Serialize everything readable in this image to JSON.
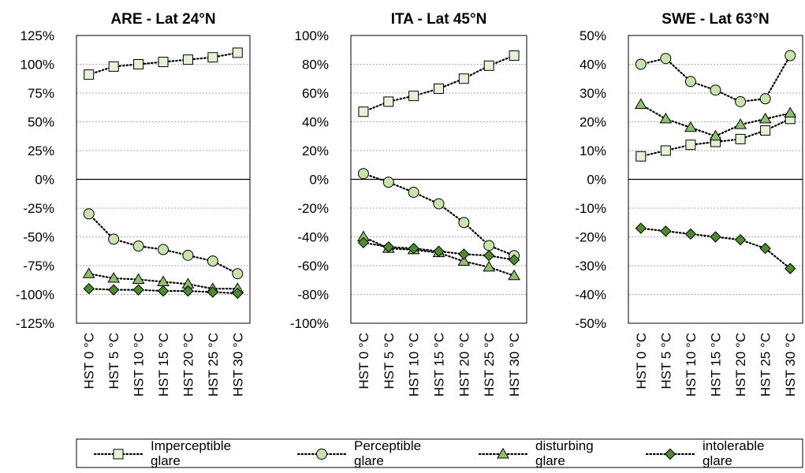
{
  "chart_data": [
    {
      "type": "line",
      "title": "ARE - Lat 24°N",
      "categories": [
        "HST 0 °C",
        "HST 5 °C",
        "HST 10 °C",
        "HST 15 °C",
        "HST 20 °C",
        "HST 25 °C",
        "HST 30 °C"
      ],
      "ylim": [
        -125,
        125
      ],
      "yticks": [
        "125%",
        "100%",
        "75%",
        "50%",
        "25%",
        "0%",
        "-25%",
        "-50%",
        "-75%",
        "-100%",
        "-125%"
      ],
      "grid": true,
      "series": [
        {
          "name": "Imperceptible glare",
          "values": [
            91,
            98,
            100,
            102,
            104,
            106,
            110
          ]
        },
        {
          "name": "Perceptible glare",
          "values": [
            -30,
            -52,
            -58,
            -61,
            -66,
            -71,
            -82
          ]
        },
        {
          "name": "disturbing glare",
          "values": [
            -82,
            -86,
            -87,
            -89,
            -91,
            -95,
            -95
          ]
        },
        {
          "name": "intolerable glare",
          "values": [
            -95,
            -96,
            -96,
            -97,
            -97,
            -98,
            -99
          ]
        }
      ]
    },
    {
      "type": "line",
      "title": "ITA - Lat 45°N",
      "categories": [
        "HST 0 °C",
        "HST 5 °C",
        "HST 10 °C",
        "HST 15 °C",
        "HST 20 °C",
        "HST 25 °C",
        "HST 30 °C"
      ],
      "ylim": [
        -100,
        100
      ],
      "yticks": [
        "100%",
        "80%",
        "60%",
        "40%",
        "20%",
        "0%",
        "-20%",
        "-40%",
        "-60%",
        "-80%",
        "-100%"
      ],
      "grid": true,
      "series": [
        {
          "name": "Imperceptible glare",
          "values": [
            47,
            54,
            58,
            63,
            70,
            79,
            86
          ]
        },
        {
          "name": "Perceptible glare",
          "values": [
            4,
            -2,
            -9,
            -17,
            -30,
            -46,
            -53
          ]
        },
        {
          "name": "disturbing glare",
          "values": [
            -40,
            -48,
            -49,
            -51,
            -57,
            -61,
            -67
          ]
        },
        {
          "name": "intolerable glare",
          "values": [
            -44,
            -47,
            -48,
            -50,
            -52,
            -53,
            -56
          ]
        }
      ]
    },
    {
      "type": "line",
      "title": "SWE - Lat 63°N",
      "categories": [
        "HST 0 °C",
        "HST 5 °C",
        "HST 10 °C",
        "HST 15 °C",
        "HST 20 °C",
        "HST 25 °C",
        "HST 30 °C"
      ],
      "ylim": [
        -50,
        50
      ],
      "yticks": [
        "50%",
        "40%",
        "30%",
        "20%",
        "10%",
        "0%",
        "-10%",
        "-20%",
        "-30%",
        "-40%",
        "-50%"
      ],
      "grid": true,
      "series": [
        {
          "name": "Imperceptible glare",
          "values": [
            8,
            10,
            12,
            13,
            14,
            17,
            21
          ]
        },
        {
          "name": "Perceptible glare",
          "values": [
            40,
            42,
            34,
            31,
            27,
            28,
            43
          ]
        },
        {
          "name": "disturbing glare",
          "values": [
            26,
            21,
            18,
            15,
            19,
            21,
            23
          ]
        },
        {
          "name": "intolerable glare",
          "values": [
            -17,
            -18,
            -19,
            -20,
            -21,
            -24,
            -31
          ]
        }
      ]
    }
  ],
  "legend": {
    "position": "bottom",
    "items": [
      {
        "marker": "square",
        "line1": "Imperceptible",
        "line2": "glare",
        "fill": "#e6f2d8"
      },
      {
        "marker": "circle",
        "line1": "Perceptible",
        "line2": "glare",
        "fill": "#c9e3ad"
      },
      {
        "marker": "triangle",
        "line1": "disturbing",
        "line2": "glare",
        "fill": "#8fc070"
      },
      {
        "marker": "diamond",
        "line1": "intolerable",
        "line2": "glare",
        "fill": "#4e8a2e"
      }
    ]
  },
  "colors": {
    "imperceptible": "#e6f2d8",
    "perceptible": "#c9e3ad",
    "disturbing": "#8fc070",
    "intolerable": "#4e8a2e",
    "grid": "#a6a6a6",
    "axis": "#000000"
  }
}
